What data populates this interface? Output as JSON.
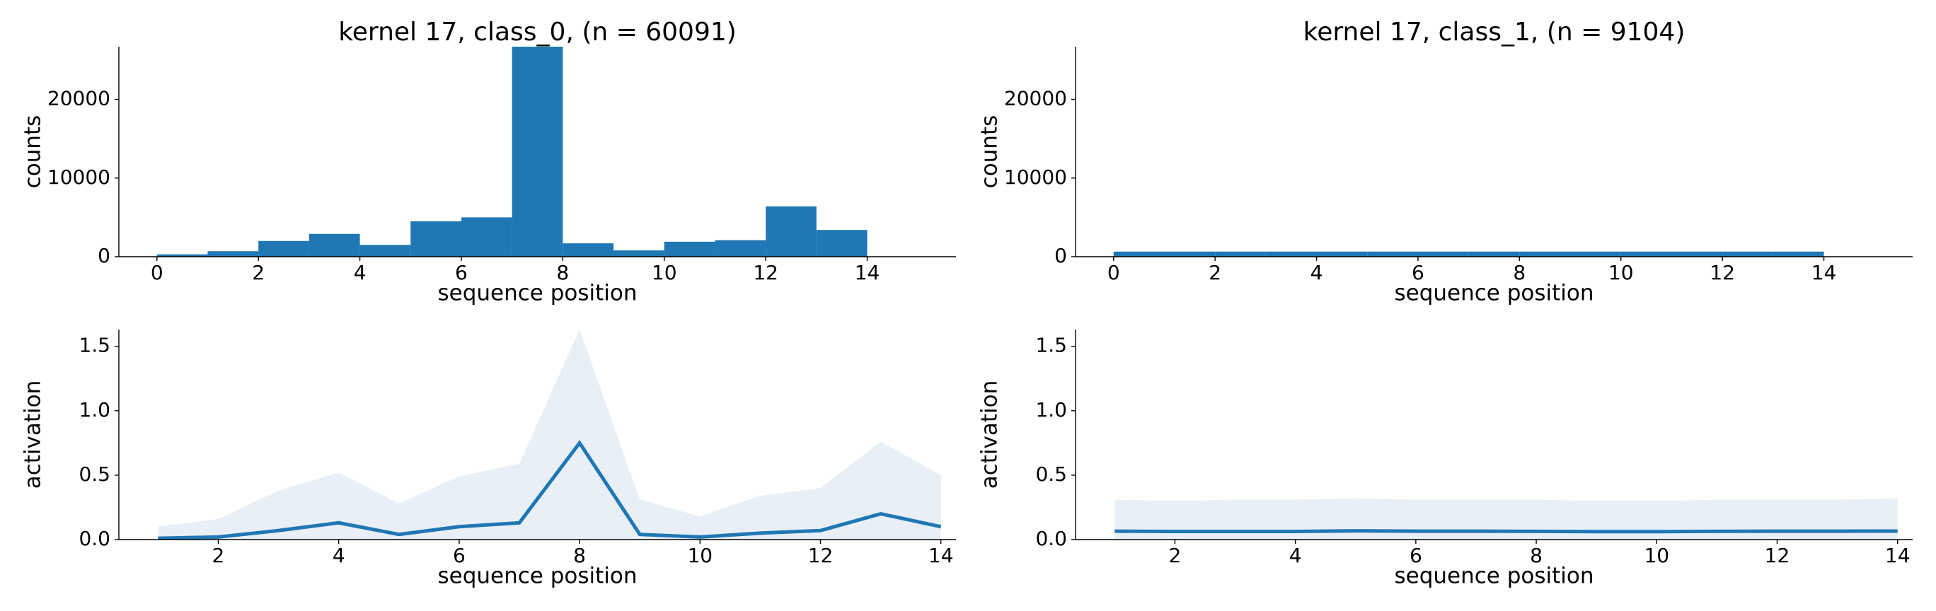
{
  "chart_data": [
    {
      "type": "histogram",
      "title": "kernel 17, class_0, (n = 60091)",
      "xlabel": "sequence position",
      "ylabel": "counts",
      "bins": [
        0,
        1,
        2,
        3,
        4,
        5,
        6,
        7,
        8,
        9,
        10,
        11,
        12,
        13,
        14
      ],
      "values": [
        300,
        700,
        2000,
        2900,
        1500,
        4500,
        5000,
        26700,
        1700,
        800,
        1900,
        2100,
        6400,
        3400
      ],
      "color": "#1f77b4",
      "xlim": [
        -0.75,
        15.75
      ],
      "ylim": [
        0,
        26700
      ],
      "xticks": [
        0,
        2,
        4,
        6,
        8,
        10,
        12,
        14
      ],
      "yticks": [
        0,
        10000,
        20000
      ]
    },
    {
      "type": "histogram",
      "title": "kernel 17, class_1, (n = 9104)",
      "xlabel": "sequence position",
      "ylabel": "counts",
      "bins": [
        0,
        1,
        2,
        3,
        4,
        5,
        6,
        7,
        8,
        9,
        10,
        11,
        12,
        13,
        14
      ],
      "values": [
        650,
        650,
        650,
        650,
        650,
        650,
        650,
        650,
        650,
        650,
        650,
        650,
        650,
        650
      ],
      "color": "#1f77b4",
      "xlim": [
        -0.75,
        15.75
      ],
      "ylim": [
        0,
        26700
      ],
      "xticks": [
        0,
        2,
        4,
        6,
        8,
        10,
        12,
        14
      ],
      "yticks": [
        0,
        10000,
        20000
      ]
    },
    {
      "type": "line",
      "xlabel": "sequence position",
      "ylabel": "activation",
      "x": [
        1,
        2,
        3,
        4,
        5,
        6,
        7,
        8,
        9,
        10,
        11,
        12,
        13,
        14
      ],
      "values": [
        0.01,
        0.02,
        0.07,
        0.13,
        0.04,
        0.1,
        0.13,
        0.75,
        0.04,
        0.02,
        0.05,
        0.07,
        0.2,
        0.1
      ],
      "band_upper": [
        0.1,
        0.16,
        0.38,
        0.52,
        0.28,
        0.49,
        0.59,
        1.63,
        0.31,
        0.18,
        0.34,
        0.4,
        0.76,
        0.5
      ],
      "color": "#1f77b4",
      "band_color": "#e8eff7",
      "xlim": [
        0.35,
        14.25
      ],
      "ylim": [
        0,
        1.63
      ],
      "xticks": [
        2,
        4,
        6,
        8,
        10,
        12,
        14
      ],
      "yticks": [
        {
          "value": 0,
          "label": "0.0"
        },
        0.5,
        {
          "value": 1,
          "label": "1.0"
        },
        1.5
      ]
    },
    {
      "type": "line",
      "xlabel": "sequence position",
      "ylabel": "activation",
      "x": [
        1,
        2,
        3,
        4,
        5,
        6,
        7,
        8,
        9,
        10,
        11,
        12,
        13,
        14
      ],
      "values": [
        0.065,
        0.063,
        0.063,
        0.063,
        0.068,
        0.065,
        0.065,
        0.064,
        0.062,
        0.062,
        0.064,
        0.065,
        0.065,
        0.066
      ],
      "band_upper": [
        0.31,
        0.3,
        0.31,
        0.31,
        0.32,
        0.31,
        0.31,
        0.31,
        0.3,
        0.3,
        0.31,
        0.31,
        0.31,
        0.32
      ],
      "color": "#1f77b4",
      "band_color": "#e8eff7",
      "xlim": [
        0.35,
        14.25
      ],
      "ylim": [
        0,
        1.63
      ],
      "xticks": [
        2,
        4,
        6,
        8,
        10,
        12,
        14
      ],
      "yticks": [
        {
          "value": 0,
          "label": "0.0"
        },
        0.5,
        {
          "value": 1,
          "label": "1.0"
        },
        1.5
      ]
    }
  ]
}
